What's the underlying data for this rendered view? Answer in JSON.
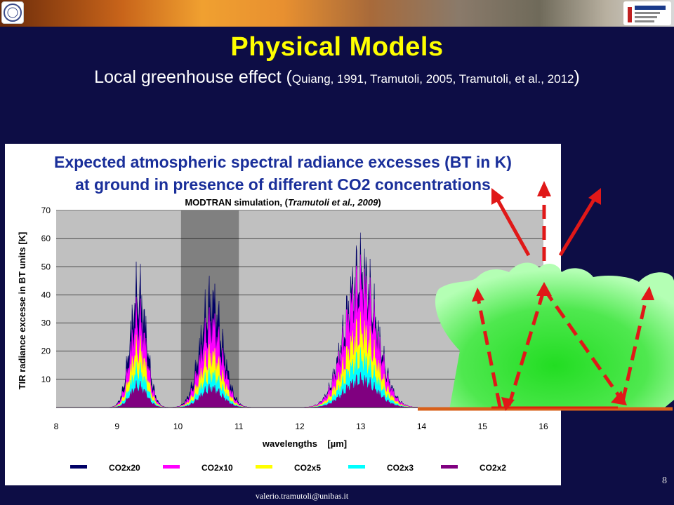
{
  "slide": {
    "title": "Physical Models",
    "subtitle_main": "Local greenhouse effect (",
    "subtitle_refs": "Quiang, 1991, Tramutoli, 2005, Tramutoli, et al., 2012",
    "subtitle_close": ")",
    "page_number": "8",
    "footer": "valerio.tramutoli@unibas.it"
  },
  "colors": {
    "background": "#0d0d45",
    "title": "#ffff00",
    "plot_area": "#c0c0c0",
    "highlight_band": "#808080",
    "arrow": "#e01818",
    "surface": "#d8601a",
    "cloud_light": "#b4ffb4",
    "cloud_dark": "#22dd22"
  },
  "chart_data": {
    "type": "area",
    "title_line1": "Expected atmospheric spectral radiance excesses (BT in K)",
    "title_line2": "at ground in presence of different CO2 concentrations",
    "subtitle_text": "MODTRAN simulation, (",
    "subtitle_ref": "Tramutoli et al., 2009",
    "subtitle_end": ")",
    "xlabel": "wavelengths    [µm]",
    "ylabel": "TIR radiance excesse in BT units [K]",
    "xlim": [
      8,
      16
    ],
    "ylim": [
      0,
      70
    ],
    "x_ticks": [
      "8",
      "9",
      "10",
      "11",
      "12",
      "13",
      "14",
      "15",
      "16"
    ],
    "y_ticks": [
      "10",
      "20",
      "30",
      "40",
      "50",
      "60",
      "70"
    ],
    "highlight_range": [
      10.05,
      11.0
    ],
    "series": [
      {
        "name": "CO2x20",
        "color": "#000066",
        "peaks": [
          54,
          50,
          64
        ]
      },
      {
        "name": "CO2x10",
        "color": "#ff00ff",
        "peaks": [
          41,
          38,
          56
        ]
      },
      {
        "name": "CO2x5",
        "color": "#ffff00",
        "peaks": [
          27,
          24,
          35
        ]
      },
      {
        "name": "CO2x3",
        "color": "#00ffff",
        "peaks": [
          17,
          15,
          22
        ]
      },
      {
        "name": "CO2x2",
        "color": "#800080",
        "peaks": [
          10,
          9,
          13
        ]
      }
    ],
    "legend_position": "bottom",
    "grid": true
  }
}
